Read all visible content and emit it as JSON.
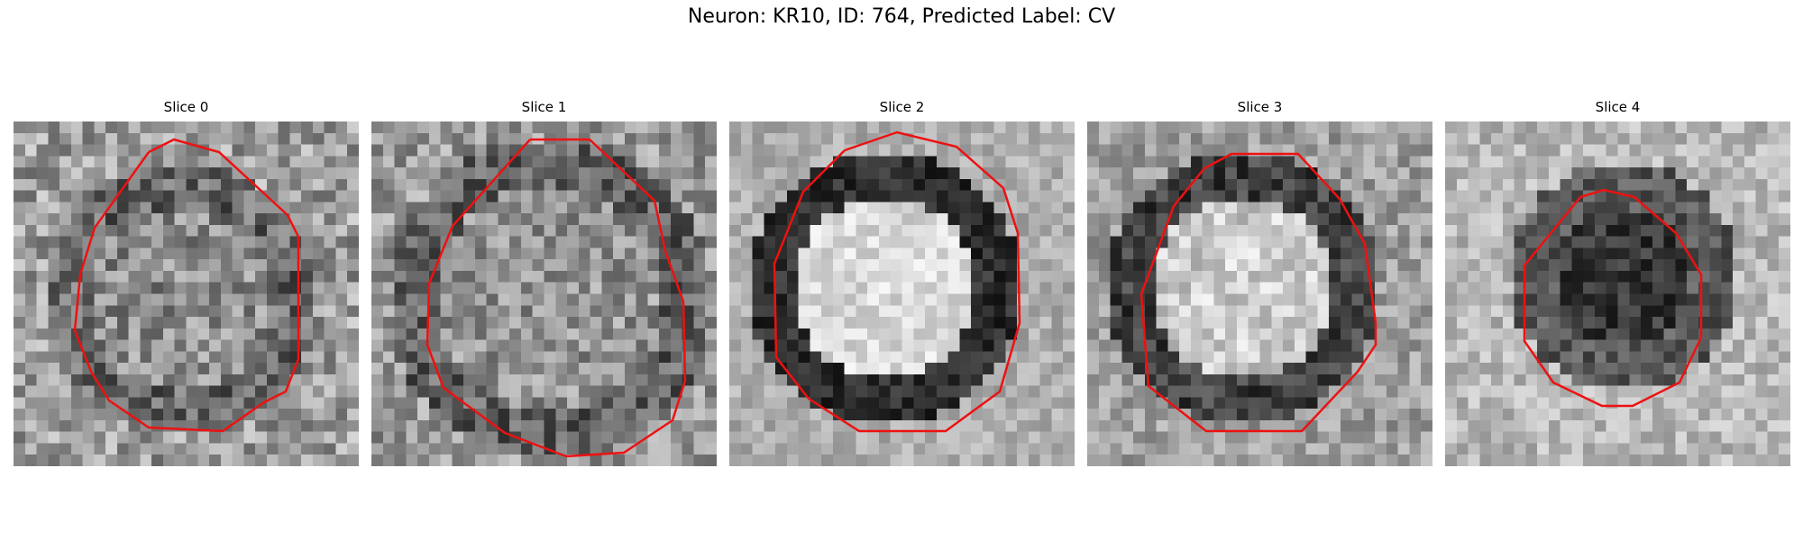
{
  "figure": {
    "title": "Neuron: KR10, ID: 764, Predicted Label: CV",
    "contour_color": "#ee1111"
  },
  "panels": [
    {
      "title": "Slice 0"
    },
    {
      "title": "Slice 1"
    },
    {
      "title": "Slice 2"
    },
    {
      "title": "Slice 3"
    },
    {
      "title": "Slice 4"
    }
  ]
}
